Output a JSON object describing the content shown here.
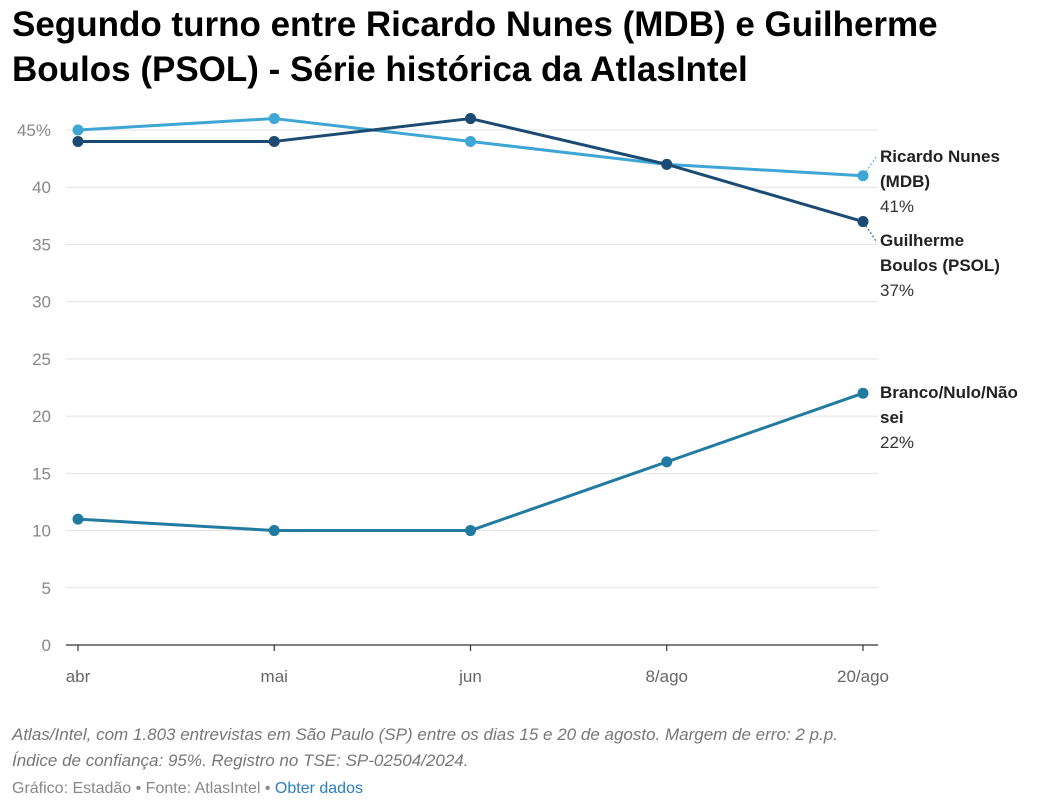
{
  "title": "Segundo turno entre Ricardo Nunes (MDB) e Guilherme Boulos (PSOL) - Série histórica da AtlasIntel",
  "chart_data": {
    "type": "line",
    "title": "Segundo turno entre Ricardo Nunes (MDB) e Guilherme Boulos (PSOL) - Série histórica da AtlasIntel",
    "categories": [
      "abr",
      "mai",
      "jun",
      "8/ago",
      "20/ago"
    ],
    "ylim": [
      0,
      45
    ],
    "yticks": [
      0,
      5,
      10,
      15,
      20,
      25,
      30,
      35,
      40,
      45
    ],
    "ytick_labels": [
      "0",
      "5",
      "10",
      "15",
      "20",
      "25",
      "30",
      "35",
      "40",
      "45%"
    ],
    "grid": true,
    "series": [
      {
        "name": "Ricardo Nunes (MDB)",
        "label_lines": [
          "Ricardo Nunes",
          "(MDB)"
        ],
        "end_label": "41%",
        "color": "#3ea6d4",
        "values": [
          45,
          46,
          44,
          42,
          41
        ]
      },
      {
        "name": "Guilherme Boulos (PSOL)",
        "label_lines": [
          "Guilherme",
          "Boulos (PSOL)"
        ],
        "end_label": "37%",
        "color": "#1b4a72",
        "values": [
          44,
          44,
          46,
          42,
          37
        ]
      },
      {
        "name": "Branco/Nulo/Não sei",
        "label_lines": [
          "Branco/Nulo/Não",
          "sei"
        ],
        "end_label": "22%",
        "color": "#217ba1",
        "values": [
          11,
          10,
          10,
          16,
          22
        ]
      }
    ]
  },
  "footer": {
    "note_line1": "Atlas/Intel, com 1.803 entrevistas em São Paulo (SP) entre os dias 15 e 20 de agosto. Margem de erro: 2 p.p.",
    "note_line2": "Índice de confiança: 95%. Registro no TSE: SP-02504/2024.",
    "credit_grafico": "Gráfico: Estadão",
    "separator": " • ",
    "credit_fonte": "Fonte: AtlasIntel",
    "link_obter": "Obter dados"
  }
}
